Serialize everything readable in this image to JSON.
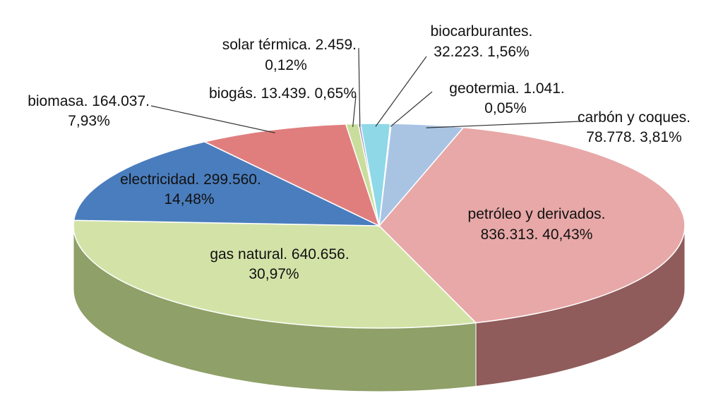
{
  "chart_data": {
    "type": "pie",
    "title": "",
    "style": "3d",
    "slices": [
      {
        "label": "petróleo y derivados.",
        "value": 836313,
        "percent": 40.43,
        "value_text": "836.313. 40,43%",
        "color": "#e8a8a8",
        "side_color": "#8f5b5b"
      },
      {
        "label": "gas natural.",
        "value": 640656,
        "percent": 30.97,
        "value_text": "640.656.",
        "percent_text": "30,97%",
        "color": "#d3e3a8",
        "side_color": "#8fa068"
      },
      {
        "label": "electricidad.",
        "value": 299560,
        "percent": 14.48,
        "value_text": "299.560.",
        "percent_text": "14,48%",
        "color": "#4a7dbd",
        "side_color": "#2e5486"
      },
      {
        "label": "biomasa.",
        "value": 164037,
        "percent": 7.93,
        "value_text": "164.037.",
        "percent_text": "7,93%",
        "color": "#e07e7e",
        "side_color": "#9a4646"
      },
      {
        "label": "biogás.",
        "value": 13439,
        "percent": 0.65,
        "value_text": "13.439. 0,65%",
        "color": "#c9de9c",
        "side_color": "#8ea060"
      },
      {
        "label": "solar térmica.",
        "value": 2459,
        "percent": 0.12,
        "value_text": "2.459.",
        "percent_text": "0,12%",
        "color": "#9b86c0",
        "side_color": "#6a5a8a"
      },
      {
        "label": "biocarburantes.",
        "value": 32223,
        "percent": 1.56,
        "value_text": "32.223. 1,56%",
        "color": "#8fd8e8",
        "side_color": "#5a9aa8"
      },
      {
        "label": "geotermia.",
        "value": 1041,
        "percent": 0.05,
        "value_text": "1.041.",
        "percent_text": "0,05%",
        "color": "#f0b070",
        "side_color": "#b07030"
      },
      {
        "label": "carbón y coques.",
        "value": 78778,
        "percent": 3.81,
        "value_text": "78.778. 3,81%",
        "color": "#a9c3e3",
        "side_color": "#6e88a8"
      }
    ]
  }
}
